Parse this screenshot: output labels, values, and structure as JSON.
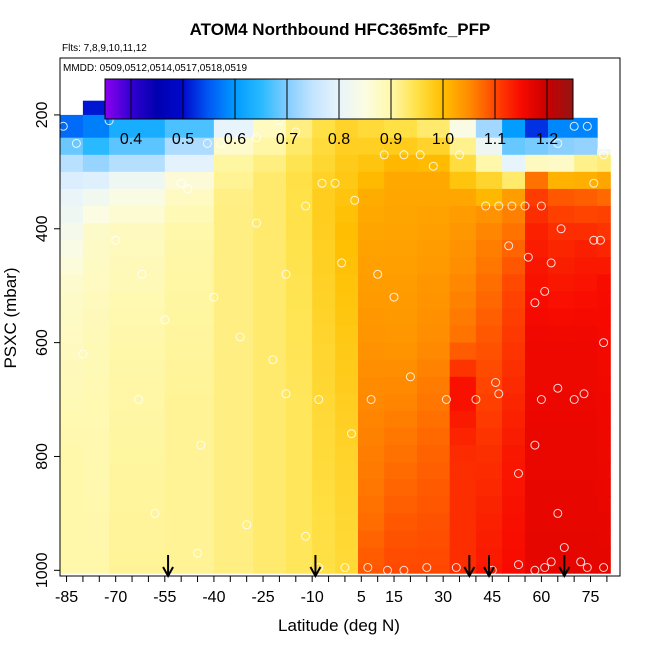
{
  "chart_data": {
    "type": "heatmap",
    "title": "ATOM4 Northbound HFC365mfc_PFP",
    "subtitle_flights": "Flts: 7,8,9,10,11,12",
    "subtitle_dates": "MMDD: 0509,0512,0514,0517,0518,0519",
    "xlabel": "Latitude (deg N)",
    "ylabel": "PSXC (mbar)",
    "xlim": [
      -87,
      84
    ],
    "ylim": [
      1010,
      100
    ],
    "x_ticks": [
      -85,
      -70,
      -55,
      -40,
      -25,
      -10,
      5,
      15,
      30,
      45,
      60,
      75
    ],
    "x_tick_labels": [
      "-85",
      "-70",
      "-55",
      "-40",
      "-25",
      "-10",
      "5",
      "15",
      "30",
      "45",
      "60",
      "75"
    ],
    "y_ticks": [
      200,
      400,
      600,
      800,
      1000
    ],
    "y_tick_labels": [
      "200",
      "400",
      "600",
      "800",
      "1000"
    ],
    "colorbar": {
      "range": [
        0.35,
        1.25
      ],
      "ticks": [
        0.4,
        0.5,
        0.6,
        0.7,
        0.8,
        0.9,
        1.0,
        1.1,
        1.2
      ],
      "tick_labels": [
        "0.4",
        "0.5",
        "0.6",
        "0.7",
        "0.8",
        "0.9",
        "1.0",
        "1.1",
        "1.2"
      ]
    },
    "pressure_levels": [
      175,
      200,
      240,
      270,
      300,
      330,
      360,
      390,
      420,
      450,
      480,
      510,
      540,
      570,
      600,
      630,
      660,
      690,
      720,
      750,
      780,
      810,
      840,
      870,
      900,
      930,
      960,
      990
    ],
    "profiles": [
      {
        "lat_from": -87,
        "lat_to": -80,
        "p_top": 200,
        "p_bot": 1005,
        "upper": [
          [
            200,
            0.45
          ],
          [
            230,
            0.62
          ],
          [
            260,
            0.7
          ],
          [
            290,
            0.75
          ],
          [
            330,
            0.8
          ],
          [
            380,
            0.82
          ],
          [
            500,
            0.87
          ],
          [
            600,
            0.88
          ],
          [
            800,
            0.9
          ],
          [
            1005,
            0.9
          ]
        ]
      },
      {
        "lat_from": -80,
        "lat_to": -72,
        "p_top": 175,
        "p_bot": 1005,
        "upper": [
          [
            175,
            0.48
          ],
          [
            230,
            0.6
          ],
          [
            270,
            0.68
          ],
          [
            320,
            0.8
          ],
          [
            400,
            0.87
          ],
          [
            600,
            0.89
          ],
          [
            1005,
            0.9
          ]
        ]
      },
      {
        "lat_from": -72,
        "lat_to": -55,
        "p_top": 175,
        "p_bot": 1005,
        "upper": [
          [
            175,
            0.5
          ],
          [
            220,
            0.63
          ],
          [
            270,
            0.7
          ],
          [
            320,
            0.83
          ],
          [
            400,
            0.88
          ],
          [
            600,
            0.9
          ],
          [
            1005,
            0.91
          ]
        ]
      },
      {
        "lat_from": -55,
        "lat_to": -40,
        "p_top": 175,
        "p_bot": 1005,
        "upper": [
          [
            175,
            0.52
          ],
          [
            220,
            0.67
          ],
          [
            270,
            0.76
          ],
          [
            320,
            0.87
          ],
          [
            400,
            0.9
          ],
          [
            700,
            0.91
          ],
          [
            1005,
            0.91
          ]
        ]
      },
      {
        "lat_from": -40,
        "lat_to": -28,
        "p_top": 175,
        "p_bot": 1005,
        "upper": [
          [
            175,
            0.62
          ],
          [
            220,
            0.8
          ],
          [
            270,
            0.9
          ],
          [
            350,
            0.92
          ],
          [
            700,
            0.92
          ],
          [
            1005,
            0.92
          ]
        ]
      },
      {
        "lat_from": -28,
        "lat_to": -18,
        "p_top": 175,
        "p_bot": 1005,
        "upper": [
          [
            175,
            0.72
          ],
          [
            220,
            0.88
          ],
          [
            300,
            0.93
          ],
          [
            700,
            0.93
          ],
          [
            1005,
            0.93
          ]
        ]
      },
      {
        "lat_from": -18,
        "lat_to": -10,
        "p_top": 175,
        "p_bot": 1005,
        "upper": [
          [
            175,
            0.78
          ],
          [
            220,
            0.92
          ],
          [
            300,
            0.95
          ],
          [
            700,
            0.94
          ],
          [
            1005,
            0.94
          ]
        ]
      },
      {
        "lat_from": -10,
        "lat_to": -3,
        "p_top": 175,
        "p_bot": 1005,
        "upper": [
          [
            175,
            0.82
          ],
          [
            220,
            0.95
          ],
          [
            350,
            0.98
          ],
          [
            750,
            0.96
          ],
          [
            1005,
            0.95
          ]
        ]
      },
      {
        "lat_from": -3,
        "lat_to": 4,
        "p_top": 175,
        "p_bot": 1005,
        "upper": [
          [
            175,
            0.8
          ],
          [
            220,
            0.97
          ],
          [
            400,
            1.0
          ],
          [
            800,
            0.97
          ],
          [
            1005,
            0.96
          ]
        ]
      },
      {
        "lat_from": 4,
        "lat_to": 12,
        "p_top": 175,
        "p_bot": 1005,
        "upper": [
          [
            175,
            0.72
          ],
          [
            220,
            0.96
          ],
          [
            350,
            1.02
          ],
          [
            900,
            1.07
          ],
          [
            1005,
            1.09
          ]
        ]
      },
      {
        "lat_from": 12,
        "lat_to": 22,
        "p_top": 175,
        "p_bot": 1005,
        "upper": [
          [
            175,
            0.7
          ],
          [
            220,
            0.95
          ],
          [
            300,
            1.02
          ],
          [
            600,
            1.04
          ],
          [
            800,
            1.07
          ],
          [
            1005,
            1.1
          ]
        ]
      },
      {
        "lat_from": 22,
        "lat_to": 32,
        "p_top": 175,
        "p_bot": 1005,
        "upper": [
          [
            175,
            0.68
          ],
          [
            220,
            0.93
          ],
          [
            300,
            1.02
          ],
          [
            600,
            1.05
          ],
          [
            800,
            1.08
          ],
          [
            1005,
            1.1
          ]
        ]
      },
      {
        "lat_from": 32,
        "lat_to": 40,
        "p_top": 175,
        "p_bot": 1005,
        "upper": [
          [
            175,
            0.68
          ],
          [
            230,
            0.88
          ],
          [
            280,
            0.95
          ],
          [
            350,
            1.03
          ],
          [
            600,
            1.07
          ],
          [
            680,
            1.15
          ],
          [
            800,
            1.12
          ],
          [
            1005,
            1.12
          ]
        ]
      },
      {
        "lat_from": 40,
        "lat_to": 48,
        "p_top": 175,
        "p_bot": 1005,
        "upper": [
          [
            175,
            0.6
          ],
          [
            240,
            0.78
          ],
          [
            270,
            0.85
          ],
          [
            300,
            0.95
          ],
          [
            380,
            1.05
          ],
          [
            600,
            1.09
          ],
          [
            800,
            1.12
          ],
          [
            1005,
            1.14
          ]
        ]
      },
      {
        "lat_from": 48,
        "lat_to": 55,
        "p_top": 175,
        "p_bot": 1005,
        "upper": [
          [
            175,
            0.5
          ],
          [
            240,
            0.65
          ],
          [
            270,
            0.72
          ],
          [
            300,
            0.88
          ],
          [
            350,
            1.05
          ],
          [
            500,
            1.1
          ],
          [
            800,
            1.14
          ],
          [
            1005,
            1.15
          ]
        ]
      },
      {
        "lat_from": 55,
        "lat_to": 62,
        "p_top": 200,
        "p_bot": 1005,
        "upper": [
          [
            200,
            0.45
          ],
          [
            240,
            0.6
          ],
          [
            280,
            0.85
          ],
          [
            320,
            1.1
          ],
          [
            400,
            1.13
          ],
          [
            600,
            1.16
          ],
          [
            1005,
            1.17
          ]
        ]
      },
      {
        "lat_from": 62,
        "lat_to": 70,
        "p_top": 205,
        "p_bot": 1005,
        "upper": [
          [
            205,
            0.55
          ],
          [
            240,
            0.62
          ],
          [
            280,
            0.85
          ],
          [
            330,
            1.08
          ],
          [
            400,
            1.12
          ],
          [
            600,
            1.16
          ],
          [
            1005,
            1.17
          ]
        ]
      },
      {
        "lat_from": 70,
        "lat_to": 77,
        "p_top": 205,
        "p_bot": 1005,
        "upper": [
          [
            205,
            0.52
          ],
          [
            250,
            0.68
          ],
          [
            290,
            0.95
          ],
          [
            340,
            1.08
          ],
          [
            420,
            1.13
          ],
          [
            600,
            1.16
          ],
          [
            1005,
            1.17
          ]
        ]
      },
      {
        "lat_from": 77,
        "lat_to": 81,
        "p_top": 260,
        "p_bot": 1005,
        "upper": [
          [
            260,
            0.8
          ],
          [
            300,
            1.0
          ],
          [
            360,
            1.1
          ],
          [
            500,
            1.15
          ],
          [
            1005,
            1.17
          ]
        ]
      }
    ],
    "samples": [
      [
        -86,
        220
      ],
      [
        -82,
        250
      ],
      [
        -72,
        210
      ],
      [
        -50,
        320
      ],
      [
        -48,
        330
      ],
      [
        -42,
        250
      ],
      [
        -38,
        250
      ],
      [
        -32,
        240
      ],
      [
        -27,
        240
      ],
      [
        -20,
        210
      ],
      [
        -15,
        230
      ],
      [
        -27,
        390
      ],
      [
        -18,
        480
      ],
      [
        -12,
        360
      ],
      [
        -7,
        320
      ],
      [
        -3,
        320
      ],
      [
        -1,
        460
      ],
      [
        3,
        350
      ],
      [
        12,
        270
      ],
      [
        18,
        270
      ],
      [
        23,
        270
      ],
      [
        27,
        290
      ],
      [
        35,
        270
      ],
      [
        43,
        360
      ],
      [
        47,
        360
      ],
      [
        51,
        360
      ],
      [
        55,
        360
      ],
      [
        60,
        360
      ],
      [
        65,
        250
      ],
      [
        70,
        220
      ],
      [
        74,
        220
      ],
      [
        79,
        270
      ],
      [
        76,
        320
      ],
      [
        -80,
        620
      ],
      [
        -70,
        420
      ],
      [
        -62,
        480
      ],
      [
        -55,
        560
      ],
      [
        -40,
        520
      ],
      [
        -32,
        590
      ],
      [
        -22,
        630
      ],
      [
        -8,
        700
      ],
      [
        2,
        760
      ],
      [
        8,
        700
      ],
      [
        15,
        520
      ],
      [
        10,
        480
      ],
      [
        20,
        660
      ],
      [
        31,
        700
      ],
      [
        40,
        700
      ],
      [
        46,
        670
      ],
      [
        47,
        690
      ],
      [
        50,
        430
      ],
      [
        56,
        450
      ],
      [
        58,
        530
      ],
      [
        61,
        510
      ],
      [
        63,
        460
      ],
      [
        66,
        400
      ],
      [
        70,
        700
      ],
      [
        73,
        690
      ],
      [
        76,
        420
      ],
      [
        78,
        420
      ],
      [
        79,
        600
      ],
      [
        65,
        680
      ],
      [
        60,
        700
      ],
      [
        58,
        780
      ],
      [
        53,
        830
      ],
      [
        -58,
        900
      ],
      [
        -45,
        970
      ],
      [
        -30,
        920
      ],
      [
        -12,
        940
      ],
      [
        -8,
        995
      ],
      [
        0,
        995
      ],
      [
        7,
        995
      ],
      [
        13,
        1000
      ],
      [
        18,
        1000
      ],
      [
        25,
        995
      ],
      [
        34,
        995
      ],
      [
        45,
        1000
      ],
      [
        53,
        990
      ],
      [
        58,
        1000
      ],
      [
        61,
        995
      ],
      [
        63,
        985
      ],
      [
        67,
        960
      ],
      [
        72,
        985
      ],
      [
        74,
        995
      ],
      [
        79,
        995
      ],
      [
        65,
        900
      ],
      [
        -18,
        690
      ],
      [
        -44,
        780
      ],
      [
        -63,
        700
      ]
    ],
    "flight_arrows": [
      -54,
      -9,
      38,
      44,
      67
    ]
  }
}
